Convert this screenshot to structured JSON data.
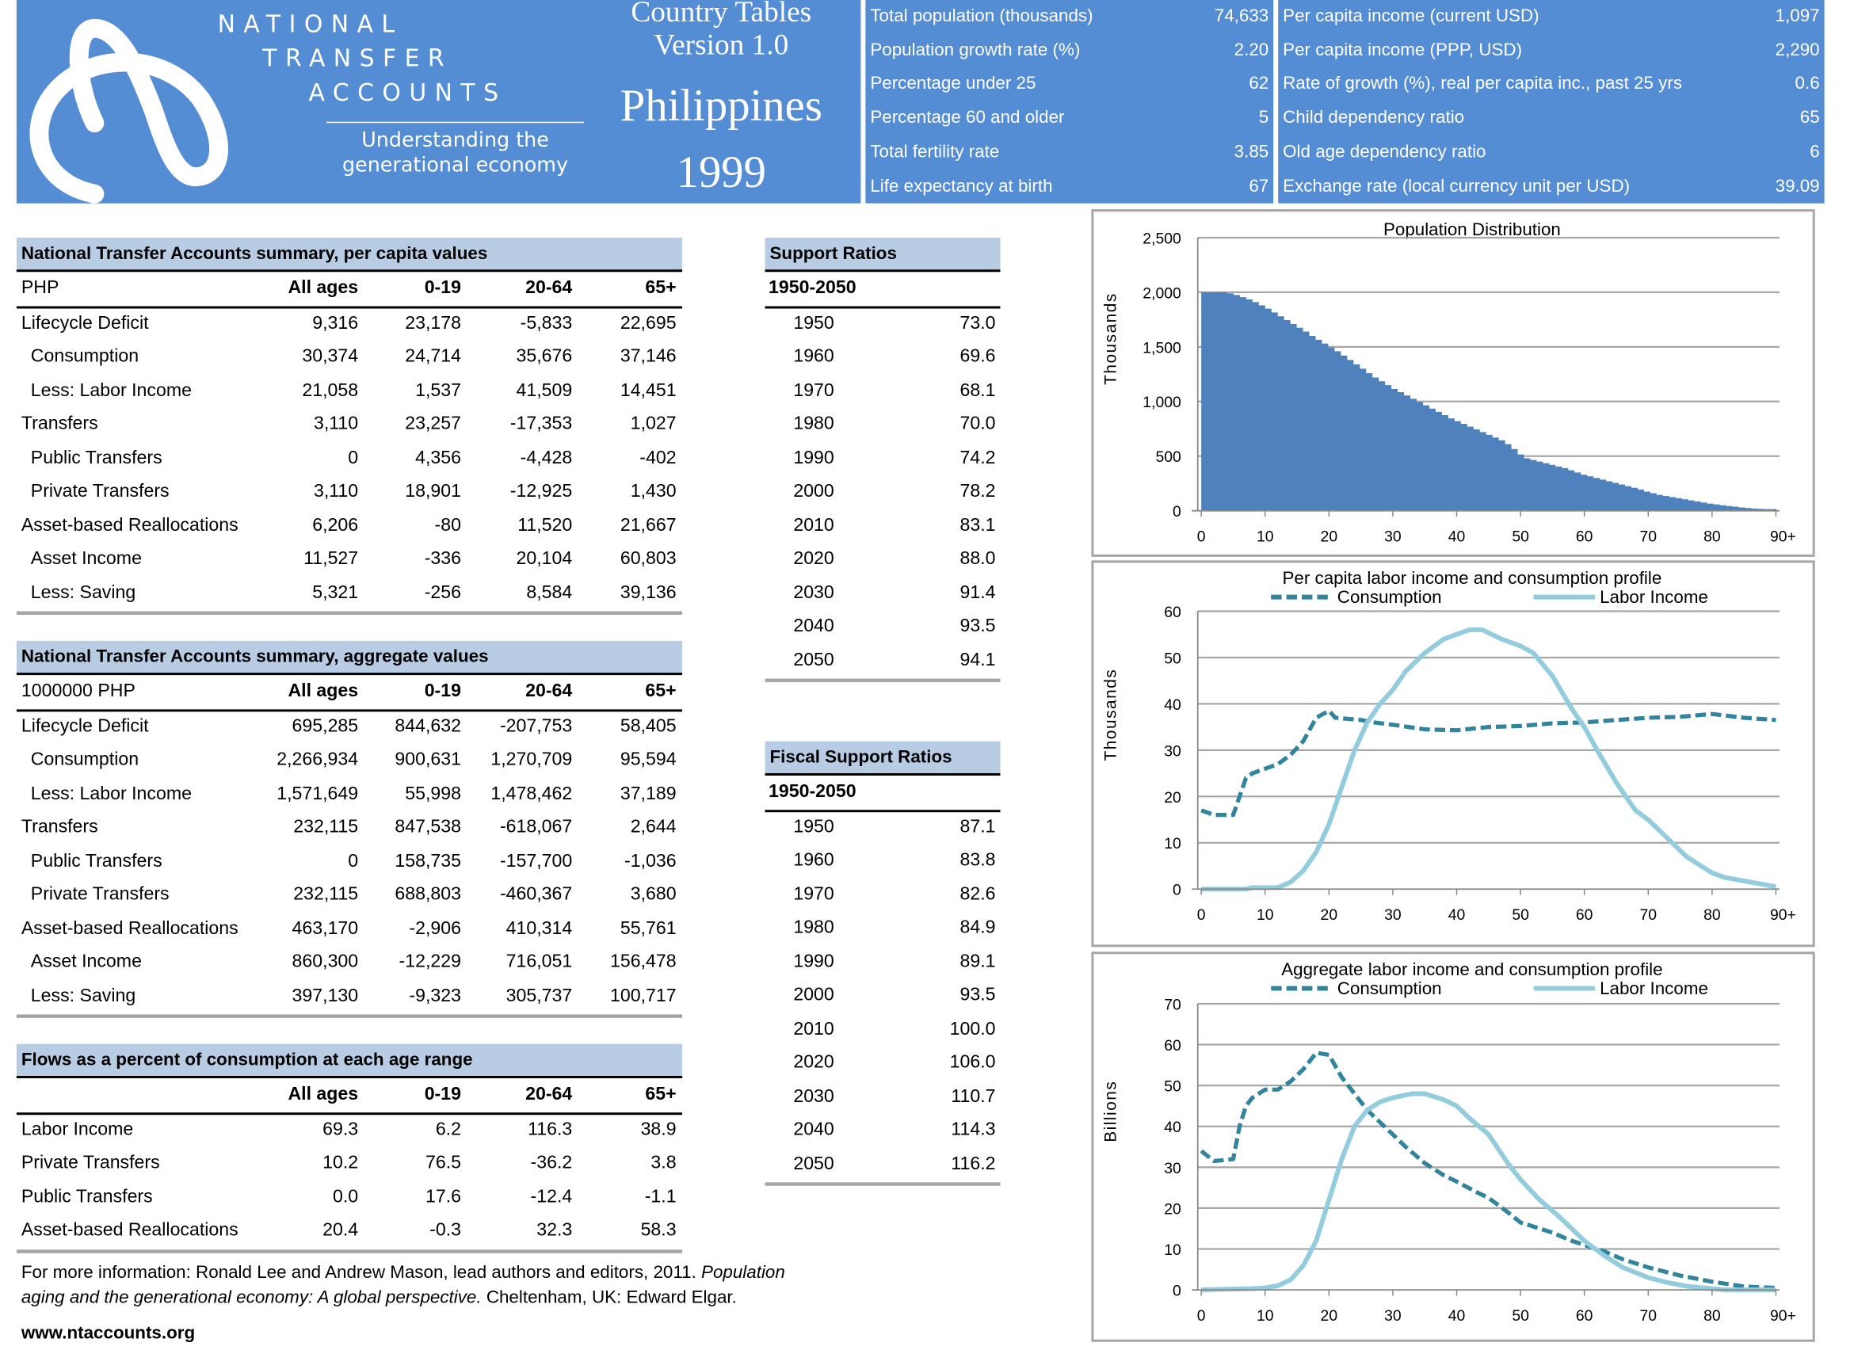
{
  "header": {
    "logo_lines": [
      "NATIONAL",
      "TRANSFER",
      "ACCOUNTS"
    ],
    "tagline": [
      "Understanding the",
      "generational economy"
    ],
    "title_line1": "Country Tables",
    "title_line2": "Version 1.0",
    "country": "Philippines",
    "year": "1999",
    "brand_color": "#548dd4"
  },
  "stats_left": [
    {
      "label": "Total population (thousands)",
      "value": "74,633"
    },
    {
      "label": "Population growth rate (%)",
      "value": "2.20"
    },
    {
      "label": "Percentage under 25",
      "value": "62"
    },
    {
      "label": "Percentage 60 and older",
      "value": "5"
    },
    {
      "label": "Total fertility rate",
      "value": "3.85"
    },
    {
      "label": "Life expectancy at birth",
      "value": "67"
    }
  ],
  "stats_right": [
    {
      "label": "Per capita income (current USD)",
      "value": "1,097"
    },
    {
      "label": "Per capita income (PPP, USD)",
      "value": "2,290"
    },
    {
      "label": "Rate of growth (%), real per capita inc., past 25 yrs",
      "value": "0.6"
    },
    {
      "label": "Child dependency ratio",
      "value": "65"
    },
    {
      "label": "Old age dependency ratio",
      "value": "6"
    },
    {
      "label": "Exchange rate (local currency unit per USD)",
      "value": "39.09"
    }
  ],
  "tables": {
    "per_capita": {
      "title": "National Transfer Accounts summary, per capita values",
      "unit": "PHP",
      "columns": [
        "All ages",
        "0-19",
        "20-64",
        "65+"
      ],
      "rows": [
        {
          "label": "Lifecycle Deficit",
          "level": 0,
          "values": [
            "9,316",
            "23,178",
            "-5,833",
            "22,695"
          ]
        },
        {
          "label": "Consumption",
          "level": 1,
          "values": [
            "30,374",
            "24,714",
            "35,676",
            "37,146"
          ]
        },
        {
          "label": "Less: Labor Income",
          "level": 1,
          "values": [
            "21,058",
            "1,537",
            "41,509",
            "14,451"
          ]
        },
        {
          "label": "Transfers",
          "level": 0,
          "values": [
            "3,110",
            "23,257",
            "-17,353",
            "1,027"
          ]
        },
        {
          "label": "Public Transfers",
          "level": 1,
          "values": [
            "0",
            "4,356",
            "-4,428",
            "-402"
          ]
        },
        {
          "label": "Private Transfers",
          "level": 1,
          "values": [
            "3,110",
            "18,901",
            "-12,925",
            "1,430"
          ]
        },
        {
          "label": "Asset-based Reallocations",
          "level": 0,
          "values": [
            "6,206",
            "-80",
            "11,520",
            "21,667"
          ]
        },
        {
          "label": "Asset Income",
          "level": 1,
          "values": [
            "11,527",
            "-336",
            "20,104",
            "60,803"
          ]
        },
        {
          "label": "Less: Saving",
          "level": 1,
          "values": [
            "5,321",
            "-256",
            "8,584",
            "39,136"
          ]
        }
      ]
    },
    "aggregate": {
      "title": "National Transfer Accounts summary, aggregate values",
      "unit": "1000000 PHP",
      "columns": [
        "All ages",
        "0-19",
        "20-64",
        "65+"
      ],
      "rows": [
        {
          "label": "Lifecycle Deficit",
          "level": 0,
          "values": [
            "695,285",
            "844,632",
            "-207,753",
            "58,405"
          ]
        },
        {
          "label": "Consumption",
          "level": 1,
          "values": [
            "2,266,934",
            "900,631",
            "1,270,709",
            "95,594"
          ]
        },
        {
          "label": "Less: Labor Income",
          "level": 1,
          "values": [
            "1,571,649",
            "55,998",
            "1,478,462",
            "37,189"
          ]
        },
        {
          "label": "Transfers",
          "level": 0,
          "values": [
            "232,115",
            "847,538",
            "-618,067",
            "2,644"
          ]
        },
        {
          "label": "Public Transfers",
          "level": 1,
          "values": [
            "0",
            "158,735",
            "-157,700",
            "-1,036"
          ]
        },
        {
          "label": "Private Transfers",
          "level": 1,
          "values": [
            "232,115",
            "688,803",
            "-460,367",
            "3,680"
          ]
        },
        {
          "label": "Asset-based Reallocations",
          "level": 0,
          "values": [
            "463,170",
            "-2,906",
            "410,314",
            "55,761"
          ]
        },
        {
          "label": "Asset Income",
          "level": 1,
          "values": [
            "860,300",
            "-12,229",
            "716,051",
            "156,478"
          ]
        },
        {
          "label": "Less: Saving",
          "level": 1,
          "values": [
            "397,130",
            "-9,323",
            "305,737",
            "100,717"
          ]
        }
      ]
    },
    "flows": {
      "title": "Flows as a percent of consumption at each age range",
      "unit": "",
      "columns": [
        "All ages",
        "0-19",
        "20-64",
        "65+"
      ],
      "rows": [
        {
          "label": "Labor Income",
          "level": 0,
          "values": [
            "69.3",
            "6.2",
            "116.3",
            "38.9"
          ]
        },
        {
          "label": "Private Transfers",
          "level": 0,
          "values": [
            "10.2",
            "76.5",
            "-36.2",
            "3.8"
          ]
        },
        {
          "label": "Public Transfers",
          "level": 0,
          "values": [
            "0.0",
            "17.6",
            "-12.4",
            "-1.1"
          ]
        },
        {
          "label": "Asset-based Reallocations",
          "level": 0,
          "values": [
            "20.4",
            "-0.3",
            "32.3",
            "58.3"
          ]
        }
      ]
    }
  },
  "support_ratios": {
    "title": "Support Ratios",
    "period": "1950-2050",
    "rows": [
      [
        "1950",
        "73.0"
      ],
      [
        "1960",
        "69.6"
      ],
      [
        "1970",
        "68.1"
      ],
      [
        "1980",
        "70.0"
      ],
      [
        "1990",
        "74.2"
      ],
      [
        "2000",
        "78.2"
      ],
      [
        "2010",
        "83.1"
      ],
      [
        "2020",
        "88.0"
      ],
      [
        "2030",
        "91.4"
      ],
      [
        "2040",
        "93.5"
      ],
      [
        "2050",
        "94.1"
      ]
    ]
  },
  "fiscal_support_ratios": {
    "title": "Fiscal Support Ratios",
    "period": "1950-2050",
    "rows": [
      [
        "1950",
        "87.1"
      ],
      [
        "1960",
        "83.8"
      ],
      [
        "1970",
        "82.6"
      ],
      [
        "1980",
        "84.9"
      ],
      [
        "1990",
        "89.1"
      ],
      [
        "2000",
        "93.5"
      ],
      [
        "2010",
        "100.0"
      ],
      [
        "2020",
        "106.0"
      ],
      [
        "2030",
        "110.7"
      ],
      [
        "2040",
        "114.3"
      ],
      [
        "2050",
        "116.2"
      ]
    ]
  },
  "footer": {
    "text1": "For more information:  Ronald Lee and Andrew Mason, lead authors and editors, 2011.  ",
    "italic1": "Population",
    "italic2": "aging and the generational economy:  A global perspective.",
    "text2": "  Cheltenham, UK: Edward Elgar.",
    "url": "www.ntaccounts.org"
  },
  "chart_data": [
    {
      "type": "bar",
      "title": "Population Distribution",
      "ylabel": "Thousands",
      "ylim": [
        0,
        2500
      ],
      "yticks": [
        "0",
        "500",
        "1,000",
        "1,500",
        "2,000",
        "2,500"
      ],
      "xticks": [
        "0",
        "10",
        "20",
        "30",
        "40",
        "50",
        "60",
        "70",
        "80",
        "90+"
      ],
      "grid": true,
      "color": "#4f81bd",
      "values": [
        2000,
        2000,
        2000,
        2000,
        1990,
        1975,
        1955,
        1935,
        1910,
        1880,
        1850,
        1815,
        1780,
        1745,
        1710,
        1675,
        1640,
        1600,
        1565,
        1530,
        1495,
        1460,
        1420,
        1380,
        1340,
        1300,
        1260,
        1220,
        1185,
        1150,
        1115,
        1085,
        1055,
        1025,
        995,
        965,
        935,
        905,
        875,
        845,
        820,
        795,
        770,
        745,
        720,
        695,
        670,
        645,
        610,
        565,
        515,
        480,
        465,
        450,
        435,
        420,
        405,
        390,
        370,
        350,
        330,
        315,
        300,
        285,
        270,
        255,
        240,
        225,
        210,
        195,
        175,
        160,
        145,
        135,
        125,
        115,
        105,
        95,
        85,
        75,
        65,
        58,
        50,
        43,
        37,
        30,
        25,
        20,
        17,
        15,
        15
      ]
    },
    {
      "type": "line",
      "title": "Per capita labor income and consumption profile",
      "ylabel": "Thousands",
      "ylim": [
        0,
        60
      ],
      "yticks": [
        "0",
        "10",
        "20",
        "30",
        "40",
        "50",
        "60"
      ],
      "xticks": [
        "0",
        "10",
        "20",
        "30",
        "40",
        "50",
        "60",
        "70",
        "80",
        "90+"
      ],
      "grid": true,
      "legend": "top",
      "series": [
        {
          "name": "Consumption",
          "style": "dashed",
          "color": "#31849b",
          "points": [
            [
              0,
              17
            ],
            [
              2,
              16
            ],
            [
              5,
              16
            ],
            [
              6,
              20
            ],
            [
              7,
              24
            ],
            [
              8,
              25
            ],
            [
              10,
              26
            ],
            [
              12,
              27
            ],
            [
              14,
              29
            ],
            [
              16,
              32
            ],
            [
              18,
              37
            ],
            [
              20,
              38.5
            ],
            [
              21,
              37
            ],
            [
              25,
              36.5
            ],
            [
              27,
              36
            ],
            [
              30,
              35.5
            ],
            [
              35,
              34.5
            ],
            [
              40,
              34.3
            ],
            [
              45,
              35
            ],
            [
              50,
              35.2
            ],
            [
              55,
              35.8
            ],
            [
              60,
              36
            ],
            [
              65,
              36.5
            ],
            [
              70,
              37
            ],
            [
              75,
              37.2
            ],
            [
              80,
              37.8
            ],
            [
              85,
              37
            ],
            [
              90,
              36.5
            ]
          ]
        },
        {
          "name": "Labor Income",
          "style": "solid",
          "color": "#93cddd",
          "points": [
            [
              0,
              0
            ],
            [
              7,
              0
            ],
            [
              8,
              0.3
            ],
            [
              12,
              0.3
            ],
            [
              14,
              1.5
            ],
            [
              16,
              4
            ],
            [
              18,
              8
            ],
            [
              20,
              14
            ],
            [
              22,
              22
            ],
            [
              24,
              30
            ],
            [
              26,
              36
            ],
            [
              28,
              40
            ],
            [
              30,
              43
            ],
            [
              32,
              47
            ],
            [
              35,
              51
            ],
            [
              38,
              54
            ],
            [
              42,
              56
            ],
            [
              44,
              56
            ],
            [
              47,
              54
            ],
            [
              50,
              52.5
            ],
            [
              52,
              51
            ],
            [
              55,
              46
            ],
            [
              58,
              39
            ],
            [
              60,
              35
            ],
            [
              62,
              30
            ],
            [
              65,
              23
            ],
            [
              68,
              17
            ],
            [
              70,
              15
            ],
            [
              73,
              11
            ],
            [
              76,
              7
            ],
            [
              80,
              3.5
            ],
            [
              82,
              2.5
            ],
            [
              86,
              1.5
            ],
            [
              90,
              0.5
            ]
          ]
        }
      ]
    },
    {
      "type": "line",
      "title": "Aggregate labor income and consumption profile",
      "ylabel": "Billions",
      "ylim": [
        0,
        70
      ],
      "yticks": [
        "0",
        "10",
        "20",
        "30",
        "40",
        "50",
        "60",
        "70"
      ],
      "xticks": [
        "0",
        "10",
        "20",
        "30",
        "40",
        "50",
        "60",
        "70",
        "80",
        "90+"
      ],
      "grid": true,
      "legend": "top",
      "series": [
        {
          "name": "Consumption",
          "style": "dashed",
          "color": "#31849b",
          "points": [
            [
              0,
              34
            ],
            [
              2,
              31.5
            ],
            [
              5,
              32
            ],
            [
              6,
              40
            ],
            [
              7,
              45
            ],
            [
              8,
              47
            ],
            [
              10,
              49
            ],
            [
              12,
              49
            ],
            [
              14,
              51
            ],
            [
              16,
              54
            ],
            [
              18,
              58
            ],
            [
              20,
              57.5
            ],
            [
              22,
              52
            ],
            [
              24,
              48
            ],
            [
              26,
              44
            ],
            [
              28,
              41
            ],
            [
              30,
              38
            ],
            [
              32,
              35
            ],
            [
              35,
              31
            ],
            [
              38,
              28
            ],
            [
              40,
              26.5
            ],
            [
              43,
              24
            ],
            [
              45,
              22.5
            ],
            [
              48,
              19
            ],
            [
              50,
              16.5
            ],
            [
              52,
              15.5
            ],
            [
              55,
              14
            ],
            [
              58,
              12
            ],
            [
              60,
              11
            ],
            [
              63,
              9.5
            ],
            [
              66,
              7.5
            ],
            [
              70,
              5.5
            ],
            [
              75,
              3.5
            ],
            [
              80,
              2
            ],
            [
              85,
              0.8
            ],
            [
              90,
              0.5
            ]
          ]
        },
        {
          "name": "Labor Income",
          "style": "solid",
          "color": "#93cddd",
          "points": [
            [
              0,
              0
            ],
            [
              5,
              0.2
            ],
            [
              8,
              0.3
            ],
            [
              10,
              0.5
            ],
            [
              12,
              1
            ],
            [
              14,
              2.5
            ],
            [
              16,
              6
            ],
            [
              18,
              12
            ],
            [
              20,
              22
            ],
            [
              22,
              32
            ],
            [
              24,
              40
            ],
            [
              26,
              44
            ],
            [
              28,
              46
            ],
            [
              30,
              47
            ],
            [
              33,
              48
            ],
            [
              35,
              48
            ],
            [
              38,
              46.5
            ],
            [
              40,
              45
            ],
            [
              42,
              42
            ],
            [
              45,
              38
            ],
            [
              48,
              31
            ],
            [
              50,
              27
            ],
            [
              53,
              22
            ],
            [
              56,
              18
            ],
            [
              60,
              12
            ],
            [
              63,
              8.5
            ],
            [
              66,
              5.5
            ],
            [
              70,
              3
            ],
            [
              73,
              1.8
            ],
            [
              76,
              0.9
            ],
            [
              80,
              0.3
            ],
            [
              82,
              0
            ],
            [
              90,
              0
            ]
          ]
        }
      ]
    }
  ]
}
